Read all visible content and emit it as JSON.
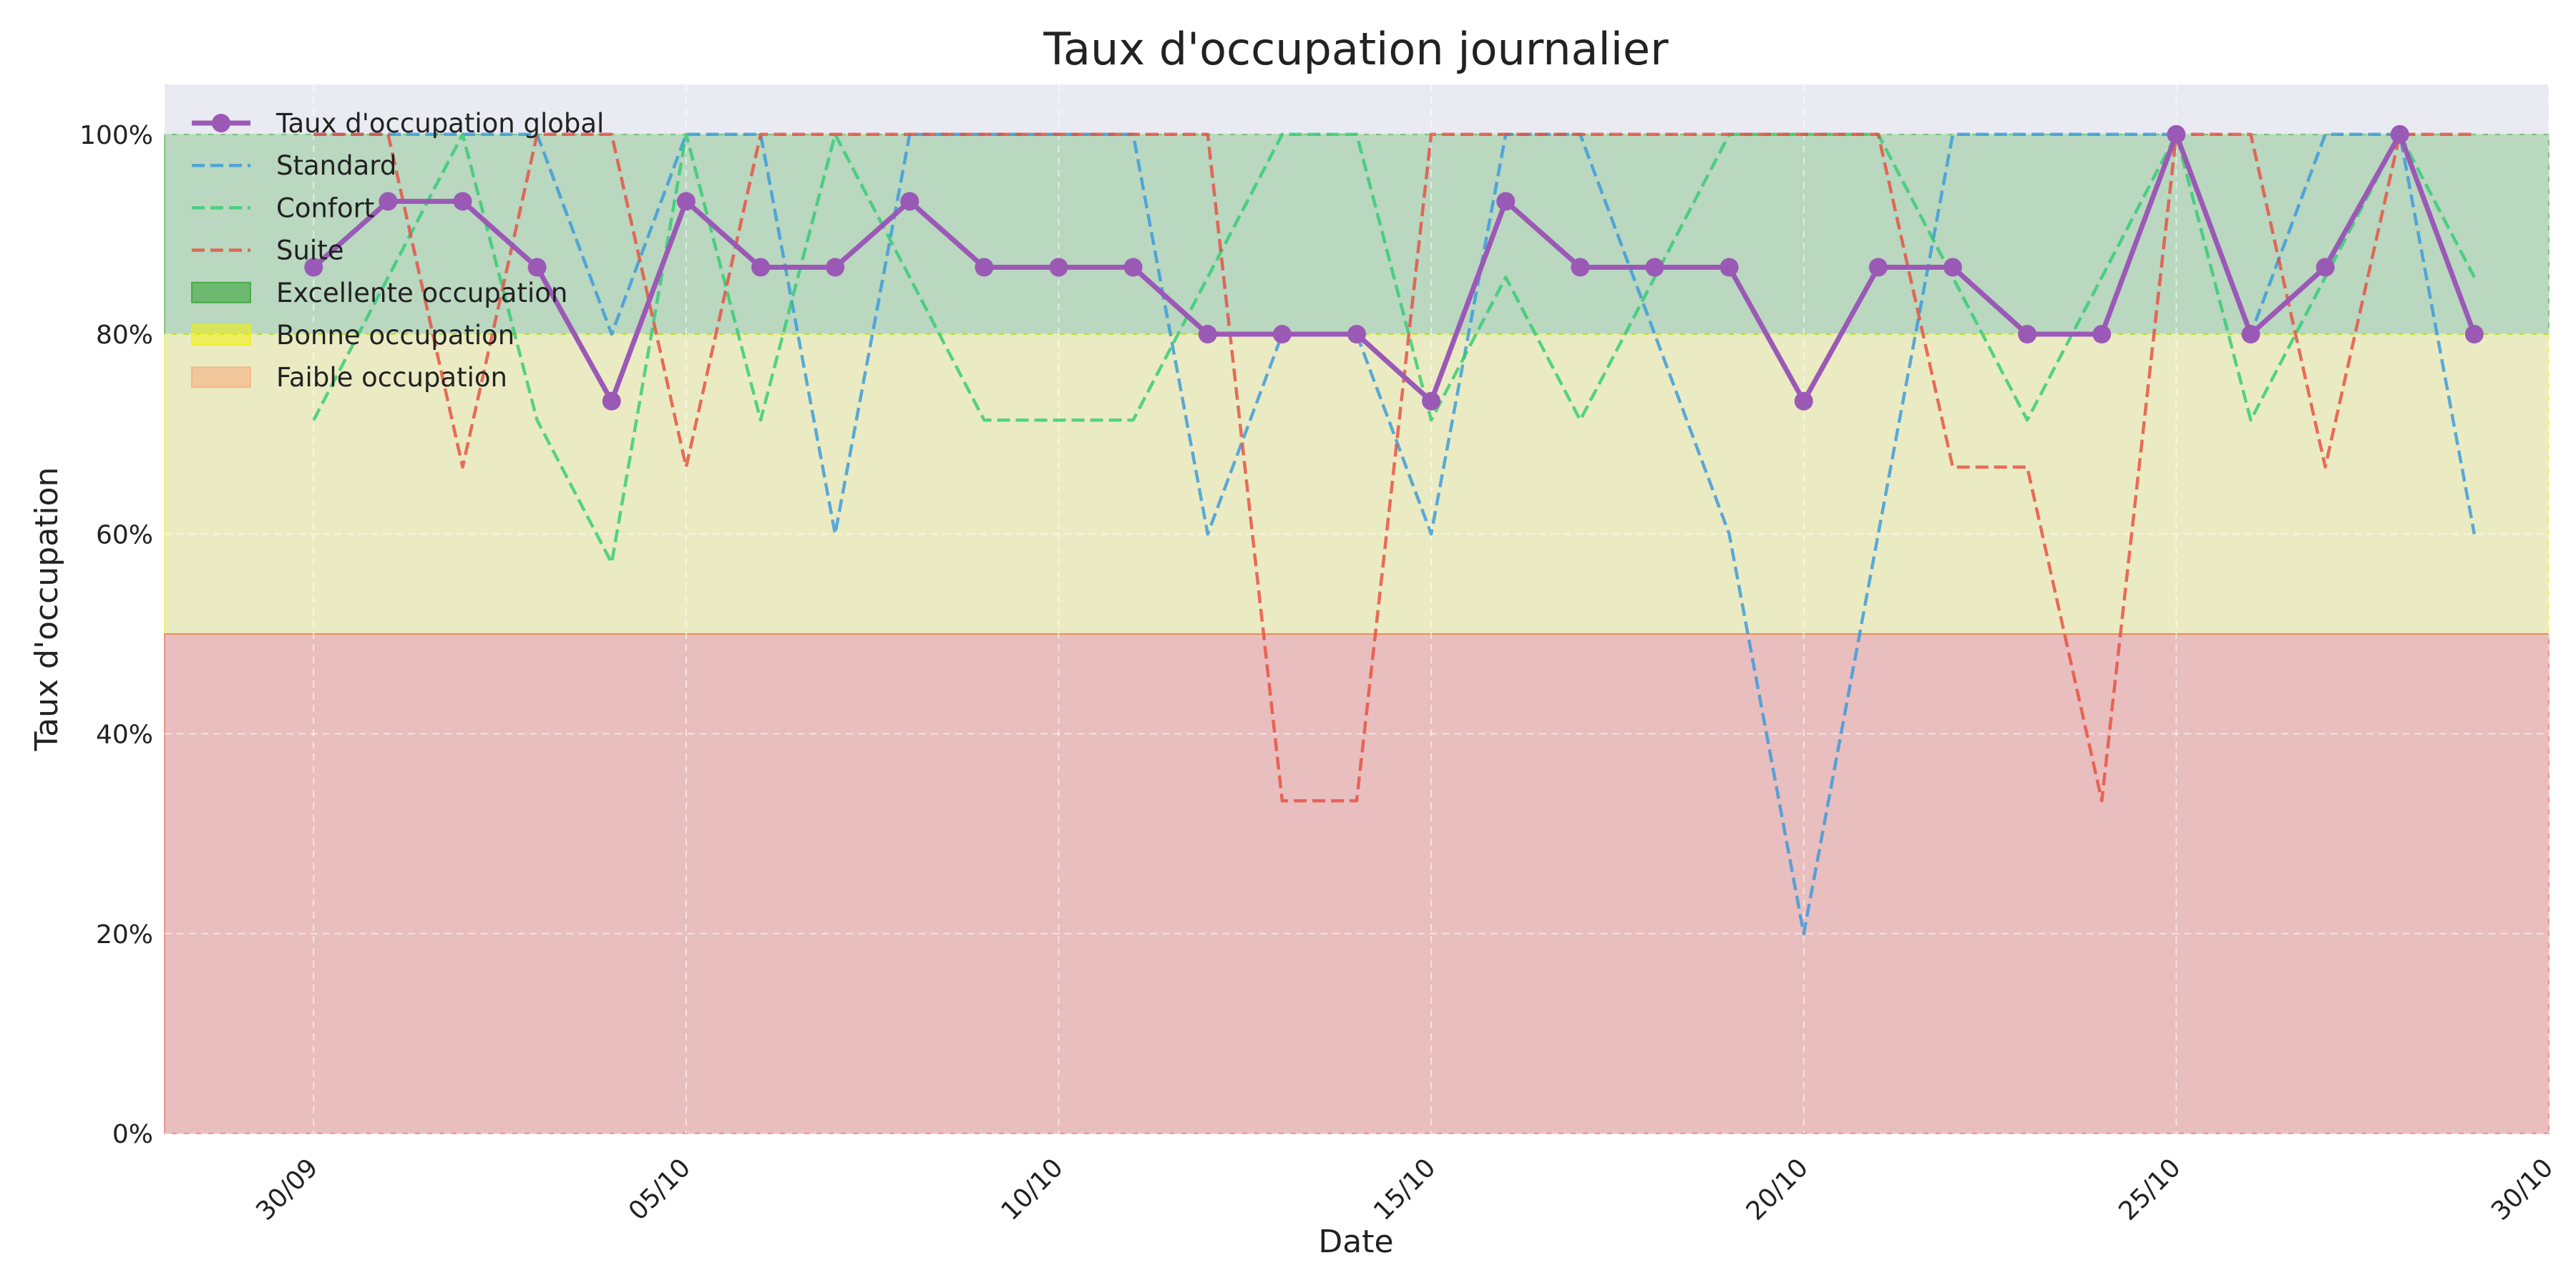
{
  "chart_data": {
    "type": "line",
    "title": "Taux d'occupation journalier",
    "xlabel": "Date",
    "ylabel": "Taux d'occupation",
    "ylim": [
      0,
      105
    ],
    "y_ticks": [
      0,
      20,
      40,
      60,
      80,
      100
    ],
    "y_tick_labels": [
      "0%",
      "20%",
      "40%",
      "60%",
      "80%",
      "100%"
    ],
    "x_tick_dates": [
      "2024-09-30",
      "2024-10-05",
      "2024-10-10",
      "2024-10-15",
      "2024-10-20",
      "2024-10-25",
      "2024-10-30"
    ],
    "x_tick_labels": [
      "30/09",
      "05/10",
      "10/10",
      "15/10",
      "20/10",
      "25/10",
      "30/10"
    ],
    "x_range": [
      "2024-09-28",
      "2024-10-30"
    ],
    "grid": true,
    "legend_position": "top-left",
    "background_color": "#eaeaf2",
    "dates": [
      "2024-09-30",
      "2024-10-01",
      "2024-10-02",
      "2024-10-03",
      "2024-10-04",
      "2024-10-05",
      "2024-10-06",
      "2024-10-07",
      "2024-10-08",
      "2024-10-09",
      "2024-10-10",
      "2024-10-11",
      "2024-10-12",
      "2024-10-13",
      "2024-10-14",
      "2024-10-15",
      "2024-10-16",
      "2024-10-17",
      "2024-10-18",
      "2024-10-19",
      "2024-10-20",
      "2024-10-21",
      "2024-10-22",
      "2024-10-23",
      "2024-10-24",
      "2024-10-25",
      "2024-10-26",
      "2024-10-27",
      "2024-10-28",
      "2024-10-29"
    ],
    "series": [
      {
        "name": "Taux d'occupation global",
        "color": "#9b59b6",
        "style": "solid-markers",
        "values": [
          86.7,
          93.3,
          93.3,
          86.7,
          73.3,
          93.3,
          86.7,
          86.7,
          93.3,
          86.7,
          86.7,
          86.7,
          80,
          80,
          80,
          73.3,
          93.3,
          86.7,
          86.7,
          86.7,
          73.3,
          86.7,
          86.7,
          80,
          80,
          100,
          80,
          86.7,
          100,
          80
        ]
      },
      {
        "name": "Standard",
        "color": "#3498db",
        "style": "dashed",
        "values": [
          100,
          100,
          100,
          100,
          80,
          100,
          100,
          60,
          100,
          100,
          100,
          100,
          60,
          80,
          80,
          60,
          100,
          100,
          80,
          60,
          20,
          60,
          100,
          100,
          100,
          100,
          80,
          100,
          100,
          60
        ]
      },
      {
        "name": "Confort",
        "color": "#2ecc71",
        "style": "dashed",
        "values": [
          71.4,
          85.7,
          100,
          71.4,
          57.1,
          100,
          71.4,
          100,
          85.7,
          71.4,
          71.4,
          71.4,
          85.7,
          100,
          100,
          71.4,
          85.7,
          71.4,
          85.7,
          100,
          100,
          100,
          85.7,
          71.4,
          85.7,
          100,
          71.4,
          85.7,
          100,
          85.7
        ]
      },
      {
        "name": "Suite",
        "color": "#e74c3c",
        "style": "dashed",
        "values": [
          100,
          100,
          66.7,
          100,
          100,
          66.7,
          100,
          100,
          100,
          100,
          100,
          100,
          100,
          33.3,
          33.3,
          100,
          100,
          100,
          100,
          100,
          100,
          100,
          66.7,
          66.7,
          33.3,
          100,
          100,
          66.7,
          100,
          100
        ]
      }
    ],
    "bands": [
      {
        "name": "Excellente occupation",
        "from": 80,
        "to": 100,
        "color": "#2ca02c",
        "opacity": 0.25
      },
      {
        "name": "Bonne occupation",
        "from": 50,
        "to": 80,
        "color": "#f1f10a",
        "opacity": 0.2
      },
      {
        "name": "Faible occupation",
        "from": 0,
        "to": 50,
        "color": "#e74c3c",
        "legend_color": "#f5a97a",
        "opacity": 0.28
      }
    ]
  }
}
